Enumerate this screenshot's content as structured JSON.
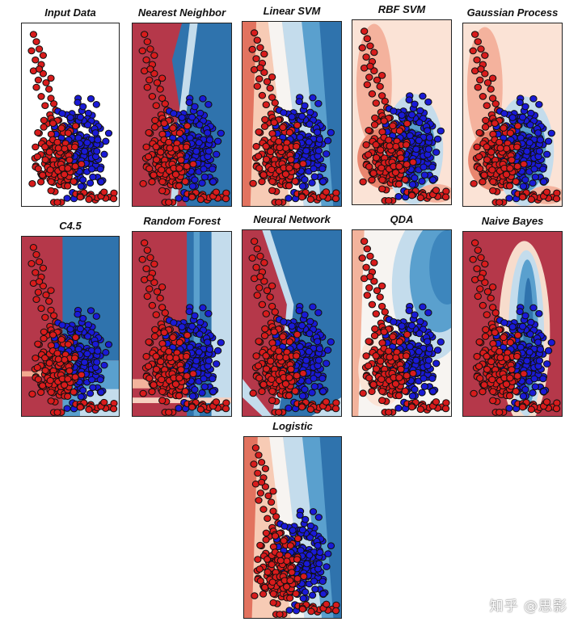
{
  "figure": {
    "watermark": "知乎 @思影"
  },
  "colors": {
    "class_a": "#d81c1c",
    "class_b": "#1a1ad6",
    "region_red": "#b5384a",
    "region_blue": "#2f73ad",
    "light_red": "#f7cbb5",
    "light_blue": "#c4dcec",
    "mid_blue": "#5aa0ce",
    "neutral": "#f7f4f1"
  },
  "chart_data": [
    {
      "id": "input",
      "type": "scatter",
      "title": "Input Data",
      "style": "none"
    },
    {
      "id": "knn",
      "type": "scatter",
      "title": "Nearest Neighbor",
      "style": "knn"
    },
    {
      "id": "lsvm",
      "type": "scatter",
      "title": "Linear SVM",
      "style": "linear"
    },
    {
      "id": "rbf",
      "type": "scatter",
      "title": "RBF SVM",
      "style": "blob"
    },
    {
      "id": "gp",
      "type": "scatter",
      "title": "Gaussian Process",
      "style": "blob"
    },
    {
      "id": "c45",
      "type": "scatter",
      "title": "C4.5",
      "style": "tree"
    },
    {
      "id": "rf",
      "type": "scatter",
      "title": "Random Forest",
      "style": "forest"
    },
    {
      "id": "nn",
      "type": "scatter",
      "title": "Neural Network",
      "style": "nn"
    },
    {
      "id": "qda",
      "type": "scatter",
      "title": "QDA",
      "style": "qda"
    },
    {
      "id": "nb",
      "type": "scatter",
      "title": "Naive Bayes",
      "style": "nb"
    },
    {
      "id": "logistic",
      "type": "scatter",
      "title": "Logistic",
      "style": "linear"
    }
  ]
}
